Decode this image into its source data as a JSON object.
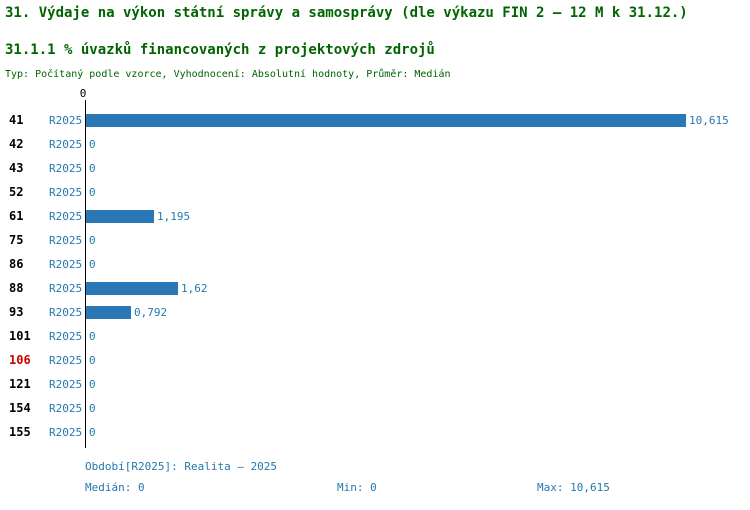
{
  "header": {
    "title": "31. Výdaje na výkon státní správy a samosprávy (dle výkazu FIN 2 – 12 M k 31.12.)",
    "subtitle": "31.1.1 % úvazků financovaných z projektových zdrojů",
    "meta": "Typ: Počítaný podle vzorce, Vyhodnocení: Absolutní hodnoty, Průměr: Medián"
  },
  "chart_data": {
    "type": "bar",
    "orientation": "horizontal",
    "title": "31.1.1 % úvazků financovaných z projektových zdrojů",
    "axis_origin_label": "0",
    "series_label": "R2025",
    "categories": [
      "41",
      "42",
      "43",
      "52",
      "61",
      "75",
      "86",
      "88",
      "93",
      "101",
      "106",
      "121",
      "154",
      "155"
    ],
    "values": [
      10.615,
      0,
      0,
      0,
      1.195,
      0,
      0,
      1.62,
      0.792,
      0,
      0,
      0,
      0,
      0
    ],
    "value_labels": [
      "10,615",
      "0",
      "0",
      "0",
      "1,195",
      "0",
      "0",
      "1,62",
      "0,792",
      "0",
      "0",
      "0",
      "0",
      "0"
    ],
    "highlighted_category": "106",
    "xlim": [
      0,
      10.615
    ],
    "grid": false,
    "legend": "none",
    "bar_color": "#2a77b5",
    "highlight_color": "#cc0000"
  },
  "footer": {
    "period": "Období[R2025]: Realita – 2025",
    "median": "Medián: 0",
    "min": "Min: 0",
    "max": "Max: 10,615"
  }
}
